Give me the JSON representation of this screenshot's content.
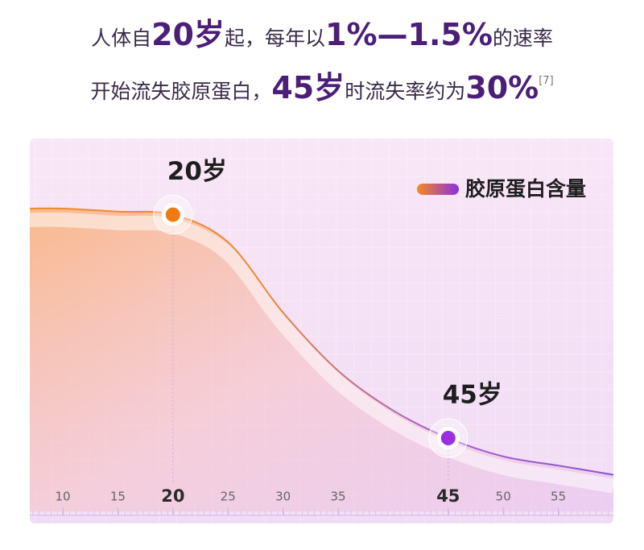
{
  "header": {
    "lines": [
      {
        "segments": [
          {
            "text": "人体自"
          },
          {
            "text": "20岁",
            "style": "strong"
          },
          {
            "text": "起，每年以"
          },
          {
            "text": "1%—1.5%",
            "style": "strong"
          },
          {
            "text": "的速率"
          }
        ]
      },
      {
        "segments": [
          {
            "text": "开始流失胶原蛋白，"
          },
          {
            "text": "45岁",
            "style": "strong"
          },
          {
            "text": "时流失率约为"
          },
          {
            "text": "30%",
            "style": "strong"
          },
          {
            "text": "[7]",
            "style": "sup"
          }
        ]
      }
    ]
  },
  "chart_data": {
    "type": "area",
    "x": [
      7,
      10,
      15,
      20,
      25,
      30,
      35,
      40,
      45,
      50,
      55,
      60
    ],
    "series": [
      {
        "name": "胶原蛋白含量",
        "color": "#9b3fd6",
        "values": [
          95,
          95,
          94,
          93,
          84,
          61,
          42,
          29,
          20,
          14,
          11,
          8
        ]
      }
    ],
    "xlim": [
      7,
      60
    ],
    "ylim": [
      0,
      100
    ],
    "xticks": [
      10,
      15,
      20,
      25,
      30,
      35,
      45,
      50,
      55
    ],
    "highlight_ticks": [
      20,
      45
    ],
    "annotations": [
      {
        "text": "20岁",
        "x": 20,
        "color": "#f07a12"
      },
      {
        "text": "45岁",
        "x": 45,
        "color": "#9b2fe0"
      }
    ],
    "legend": "top-right"
  }
}
